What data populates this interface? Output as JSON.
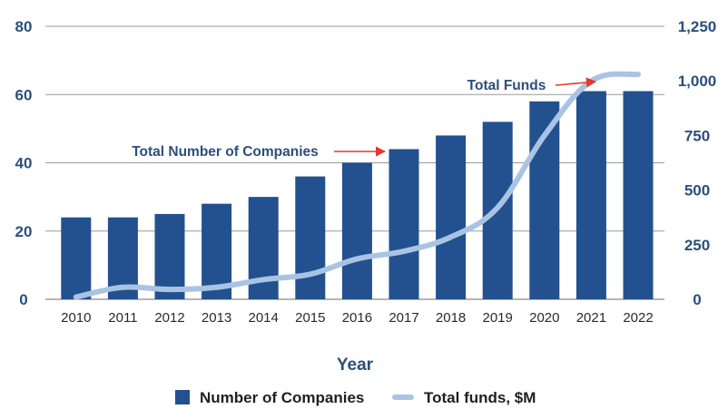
{
  "chart_data": {
    "type": "bar",
    "categories": [
      "2010",
      "2011",
      "2012",
      "2013",
      "2014",
      "2015",
      "2016",
      "2017",
      "2018",
      "2019",
      "2020",
      "2021",
      "2022"
    ],
    "series": [
      {
        "name": "Number of Companies",
        "kind": "bar",
        "axis": "left",
        "color": "#23508f",
        "values": [
          24,
          24,
          25,
          28,
          30,
          36,
          40,
          44,
          48,
          52,
          58,
          61,
          61
        ]
      },
      {
        "name": "Total funds, $M",
        "kind": "line",
        "axis": "right",
        "color": "#a9c4e3",
        "values": [
          10,
          55,
          45,
          55,
          90,
          115,
          185,
          220,
          285,
          420,
          750,
          1000,
          1030
        ]
      }
    ],
    "xlabel": "Year",
    "ylabel": "",
    "ylabel_right": "",
    "ylim": [
      0,
      80
    ],
    "ylim_right": [
      0,
      1250
    ],
    "yticks": [
      0,
      20,
      40,
      60,
      80
    ],
    "yticks_right": [
      0,
      250,
      500,
      750,
      1000,
      1250
    ],
    "yticks_right_labels": [
      "0",
      "250",
      "500",
      "750",
      "1,000",
      "1,250"
    ],
    "grid": true,
    "legend": "bottom",
    "annotations": [
      {
        "text": "Total Number of Companies",
        "points_to": "2017"
      },
      {
        "text": "Total Funds",
        "points_to": "2021"
      }
    ],
    "annotation_arrow_color": "#e03a2f"
  }
}
